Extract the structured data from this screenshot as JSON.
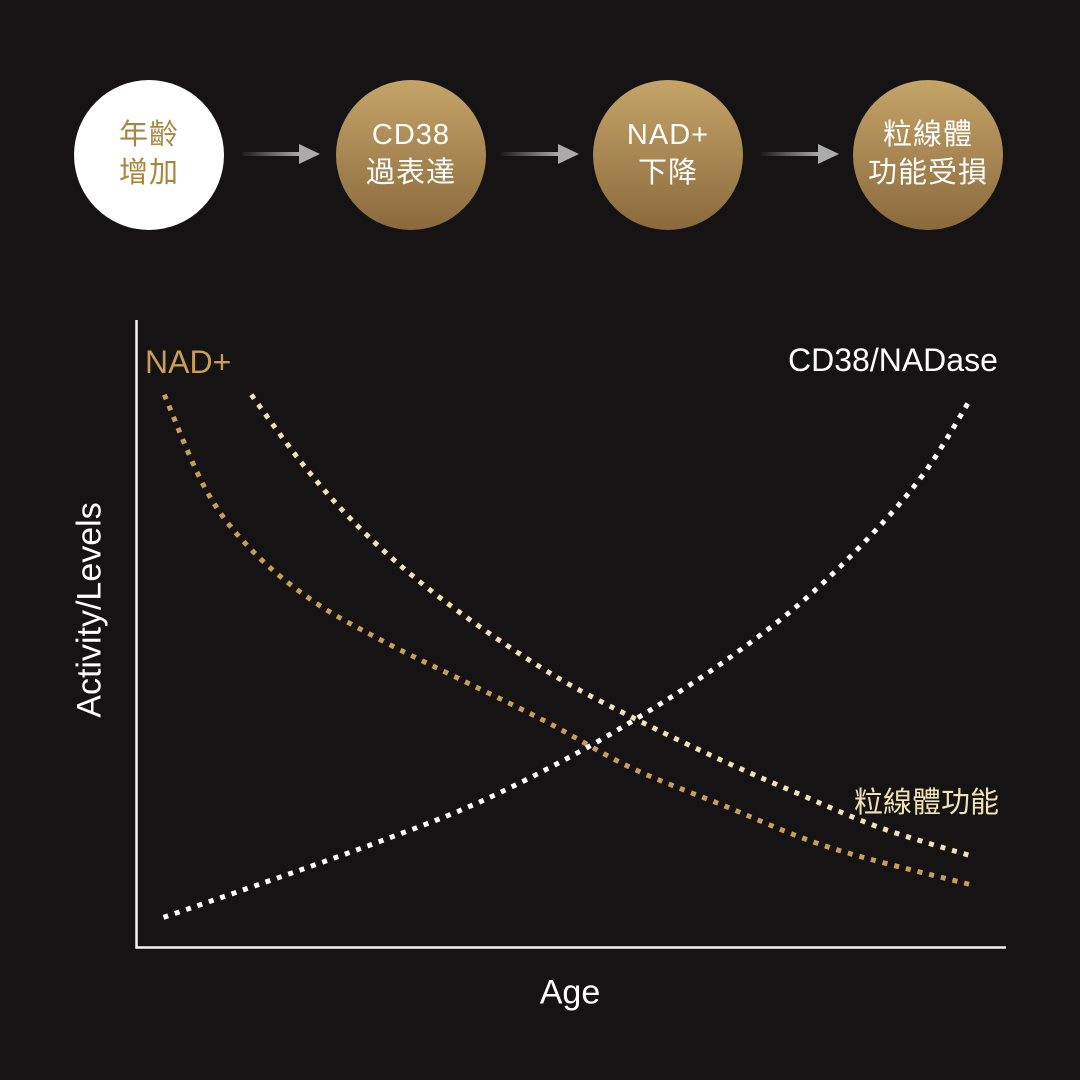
{
  "background_color": "#151314",
  "flow": {
    "arrow_color": "#ababab",
    "gold_gradient": {
      "top": "#c5a469",
      "bottom": "#8a6a3c"
    },
    "steps": [
      {
        "lines": [
          "年齡",
          "增加"
        ],
        "style": "white",
        "bg": "#ffffff",
        "text_color": "#a8863f"
      },
      {
        "lines": [
          "CD38",
          "過表達"
        ],
        "style": "gold",
        "text_color": "#fdfdfd"
      },
      {
        "lines": [
          "NAD+",
          "下降"
        ],
        "style": "gold",
        "text_color": "#fdfdfd"
      },
      {
        "lines": [
          "粒線體",
          "功能受損"
        ],
        "style": "gold",
        "text_color": "#fdfdfd"
      }
    ]
  },
  "chart_data": {
    "type": "line",
    "title": "",
    "xlabel": "Age",
    "ylabel": "Activity/Levels",
    "grid": false,
    "legend_position": "inline-labels",
    "axis_color": "#f4f4f4",
    "x_range": [
      0,
      100
    ],
    "y_range": [
      0,
      100
    ],
    "line_style": "dotted",
    "series": [
      {
        "name": "NAD+",
        "color": "#c79f5a",
        "trend": "decreasing",
        "points": [
          [
            3.2,
            88.1
          ],
          [
            8.0,
            72.9
          ],
          [
            13.2,
            63.4
          ],
          [
            20.1,
            55.4
          ],
          [
            28.1,
            49.0
          ],
          [
            37.3,
            42.7
          ],
          [
            47.1,
            36.0
          ],
          [
            56.8,
            28.7
          ],
          [
            67.2,
            22.8
          ],
          [
            79.8,
            15.9
          ],
          [
            96.0,
            10.0
          ]
        ]
      },
      {
        "name": "CD38/NADase",
        "color": "#ffffff",
        "trend": "increasing",
        "points": [
          [
            3.1,
            4.8
          ],
          [
            14.4,
            10.2
          ],
          [
            27.0,
            16.4
          ],
          [
            38.5,
            22.6
          ],
          [
            48.8,
            29.6
          ],
          [
            58.0,
            36.9
          ],
          [
            67.2,
            45.2
          ],
          [
            76.3,
            54.8
          ],
          [
            84.4,
            65.6
          ],
          [
            90.7,
            75.8
          ],
          [
            96.0,
            87.6
          ]
        ]
      },
      {
        "name": "粒線體功能",
        "color": "#f0e1b6",
        "trend": "decreasing",
        "points": [
          [
            13.2,
            88.1
          ],
          [
            18.9,
            77.4
          ],
          [
            24.7,
            68.2
          ],
          [
            31.6,
            59.4
          ],
          [
            39.6,
            51.0
          ],
          [
            48.8,
            42.7
          ],
          [
            58.0,
            36.0
          ],
          [
            67.2,
            29.9
          ],
          [
            76.3,
            24.4
          ],
          [
            85.5,
            19.1
          ],
          [
            96.2,
            14.5
          ]
        ]
      }
    ]
  }
}
